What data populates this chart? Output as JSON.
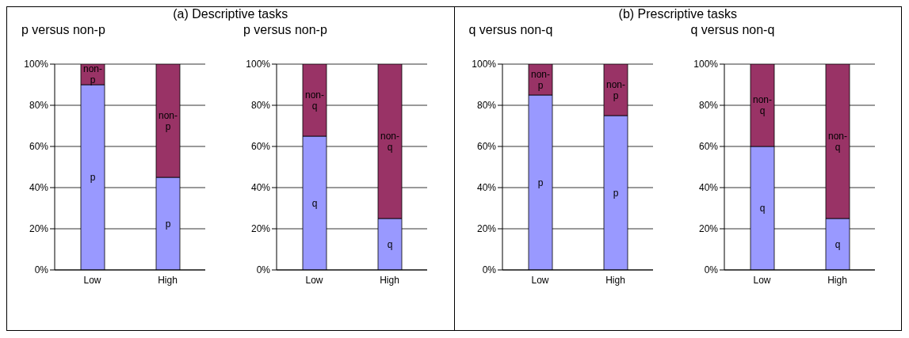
{
  "chart_data": [
    {
      "type": "bar",
      "title": "(a) Descriptive tasks",
      "subtitle": "p versus non-p",
      "categories": [
        "Low",
        "High"
      ],
      "stacked": true,
      "grid": "y",
      "legend": false,
      "ylim": [
        0,
        100
      ],
      "yticks": [
        {
          "value": 0,
          "label": "0%"
        },
        {
          "value": 20,
          "label": "20%"
        },
        {
          "value": 40,
          "label": "40%"
        },
        {
          "value": 60,
          "label": "60%"
        },
        {
          "value": 80,
          "label": "80%"
        },
        {
          "value": 100,
          "label": "100%"
        }
      ],
      "series": [
        {
          "name": "p",
          "color": "#9999ff",
          "values": [
            90,
            45
          ]
        },
        {
          "name": "non-p",
          "color": "#993366",
          "values": [
            10,
            55
          ]
        }
      ]
    },
    {
      "type": "bar",
      "subtitle": "p versus non-p",
      "categories": [
        "Low",
        "High"
      ],
      "stacked": true,
      "grid": "y",
      "legend": false,
      "ylim": [
        0,
        100
      ],
      "yticks": [
        {
          "value": 0,
          "label": "0%"
        },
        {
          "value": 20,
          "label": "20%"
        },
        {
          "value": 40,
          "label": "40%"
        },
        {
          "value": 60,
          "label": "60%"
        },
        {
          "value": 80,
          "label": "80%"
        },
        {
          "value": 100,
          "label": "100%"
        }
      ],
      "series": [
        {
          "name": "q",
          "color": "#9999ff",
          "values": [
            65,
            25
          ]
        },
        {
          "name": "non-q",
          "color": "#993366",
          "values": [
            35,
            75
          ]
        }
      ]
    },
    {
      "type": "bar",
      "title": "(b) Prescriptive tasks",
      "subtitle": "q versus non-q",
      "categories": [
        "Low",
        "High"
      ],
      "stacked": true,
      "grid": "y",
      "legend": false,
      "ylim": [
        0,
        100
      ],
      "yticks": [
        {
          "value": 0,
          "label": "0%"
        },
        {
          "value": 20,
          "label": "20%"
        },
        {
          "value": 40,
          "label": "40%"
        },
        {
          "value": 60,
          "label": "60%"
        },
        {
          "value": 80,
          "label": "80%"
        },
        {
          "value": 100,
          "label": "100%"
        }
      ],
      "series": [
        {
          "name": "p",
          "color": "#9999ff",
          "values": [
            85,
            75
          ]
        },
        {
          "name": "non-p",
          "color": "#993366",
          "values": [
            15,
            25
          ]
        }
      ]
    },
    {
      "type": "bar",
      "subtitle": "q versus non-q",
      "categories": [
        "Low",
        "High"
      ],
      "stacked": true,
      "grid": "y",
      "legend": false,
      "ylim": [
        0,
        100
      ],
      "yticks": [
        {
          "value": 0,
          "label": "0%"
        },
        {
          "value": 20,
          "label": "20%"
        },
        {
          "value": 40,
          "label": "40%"
        },
        {
          "value": 60,
          "label": "60%"
        },
        {
          "value": 80,
          "label": "80%"
        },
        {
          "value": 100,
          "label": "100%"
        }
      ],
      "series": [
        {
          "name": "q",
          "color": "#9999ff",
          "values": [
            60,
            25
          ]
        },
        {
          "name": "non-q",
          "color": "#993366",
          "values": [
            40,
            75
          ]
        }
      ]
    }
  ]
}
